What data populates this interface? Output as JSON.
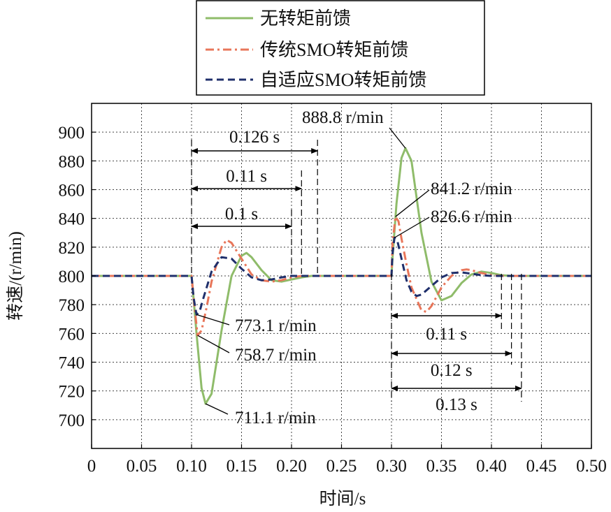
{
  "chart_data": {
    "type": "line",
    "xlabel": "时间/s",
    "ylabel": "转速/(r/min)",
    "xlim": [
      0,
      0.5
    ],
    "ylim": [
      680,
      920
    ],
    "x_ticks": [
      "0",
      "0.05",
      "0.10",
      "0.15",
      "0.20",
      "0.25",
      "0.30",
      "0.35",
      "0.40",
      "0.45",
      "0.50"
    ],
    "y_ticks": [
      "700",
      "720",
      "740",
      "760",
      "780",
      "800",
      "820",
      "840",
      "860",
      "880",
      "900"
    ],
    "grid": true,
    "legend_position": "top-center",
    "series": [
      {
        "name": "无转矩前馈",
        "color": "#8fbc6a",
        "dash": "solid",
        "x": [
          0,
          0.1,
          0.101,
          0.105,
          0.11,
          0.114,
          0.12,
          0.13,
          0.14,
          0.15,
          0.155,
          0.16,
          0.17,
          0.18,
          0.19,
          0.2,
          0.21,
          0.22,
          0.23,
          0.3,
          0.301,
          0.305,
          0.31,
          0.314,
          0.32,
          0.33,
          0.34,
          0.35,
          0.36,
          0.37,
          0.38,
          0.39,
          0.4,
          0.41,
          0.42,
          0.5
        ],
        "y": [
          800,
          800,
          793,
          760,
          722,
          711.1,
          718,
          762,
          800,
          814,
          816,
          813,
          804,
          797,
          796,
          797.5,
          799,
          800,
          800,
          800,
          812,
          850,
          882,
          888.8,
          880,
          830,
          796,
          783,
          786,
          795,
          801,
          803,
          802,
          800.5,
          800,
          800
        ]
      },
      {
        "name": "传统SMO转矩前馈",
        "color": "#e8765a",
        "dash": "dashdot",
        "x": [
          0,
          0.1,
          0.102,
          0.106,
          0.11,
          0.115,
          0.12,
          0.13,
          0.135,
          0.14,
          0.15,
          0.16,
          0.17,
          0.18,
          0.19,
          0.2,
          0.21,
          0.3,
          0.301,
          0.304,
          0.307,
          0.31,
          0.315,
          0.32,
          0.33,
          0.335,
          0.34,
          0.35,
          0.36,
          0.37,
          0.375,
          0.38,
          0.39,
          0.4,
          0.41,
          0.5
        ],
        "y": [
          800,
          800,
          785,
          758.7,
          762,
          778,
          796,
          820,
          825,
          823,
          812,
          801,
          797,
          796,
          797,
          799,
          800,
          800,
          822,
          841.2,
          838,
          826,
          808,
          792,
          776,
          775,
          779,
          792,
          800,
          804,
          804.5,
          804,
          802,
          800.5,
          800,
          800
        ]
      },
      {
        "name": "自适应SMO转矩前馈",
        "color": "#1f2f6b",
        "dash": "dashed",
        "x": [
          0,
          0.1,
          0.102,
          0.105,
          0.108,
          0.112,
          0.12,
          0.13,
          0.14,
          0.15,
          0.16,
          0.17,
          0.18,
          0.19,
          0.2,
          0.3,
          0.301,
          0.303,
          0.306,
          0.31,
          0.315,
          0.32,
          0.325,
          0.33,
          0.34,
          0.35,
          0.36,
          0.37,
          0.38,
          0.39,
          0.4,
          0.5
        ],
        "y": [
          800,
          800,
          785,
          773.1,
          775,
          785,
          803,
          813,
          812,
          805,
          799,
          797,
          797.5,
          799,
          800,
          800,
          815,
          826.6,
          824,
          812,
          797,
          789,
          786,
          787,
          793,
          799,
          802,
          802.5,
          801.5,
          800.5,
          800,
          800
        ]
      }
    ],
    "annotations": [
      {
        "text": "888.8 r/min",
        "x": 0.314,
        "y": 888.8
      },
      {
        "text": "841.2 r/min",
        "x": 0.304,
        "y": 841.2
      },
      {
        "text": "826.6 r/min",
        "x": 0.303,
        "y": 826.6
      },
      {
        "text": "773.1 r/min",
        "x": 0.105,
        "y": 773.1
      },
      {
        "text": "758.7 r/min",
        "x": 0.106,
        "y": 758.7
      },
      {
        "text": "711.1 r/min",
        "x": 0.114,
        "y": 711.1
      },
      {
        "text": "0.126 s",
        "x_start": 0.1,
        "x_end": 0.226
      },
      {
        "text": "0.11 s",
        "x_start": 0.1,
        "x_end": 0.21
      },
      {
        "text": "0.1 s",
        "x_start": 0.1,
        "x_end": 0.2
      },
      {
        "text": "0.11 s",
        "x_start": 0.3,
        "x_end": 0.41
      },
      {
        "text": "0.12 s",
        "x_start": 0.3,
        "x_end": 0.42
      },
      {
        "text": "0.13 s",
        "x_start": 0.3,
        "x_end": 0.43
      }
    ]
  }
}
